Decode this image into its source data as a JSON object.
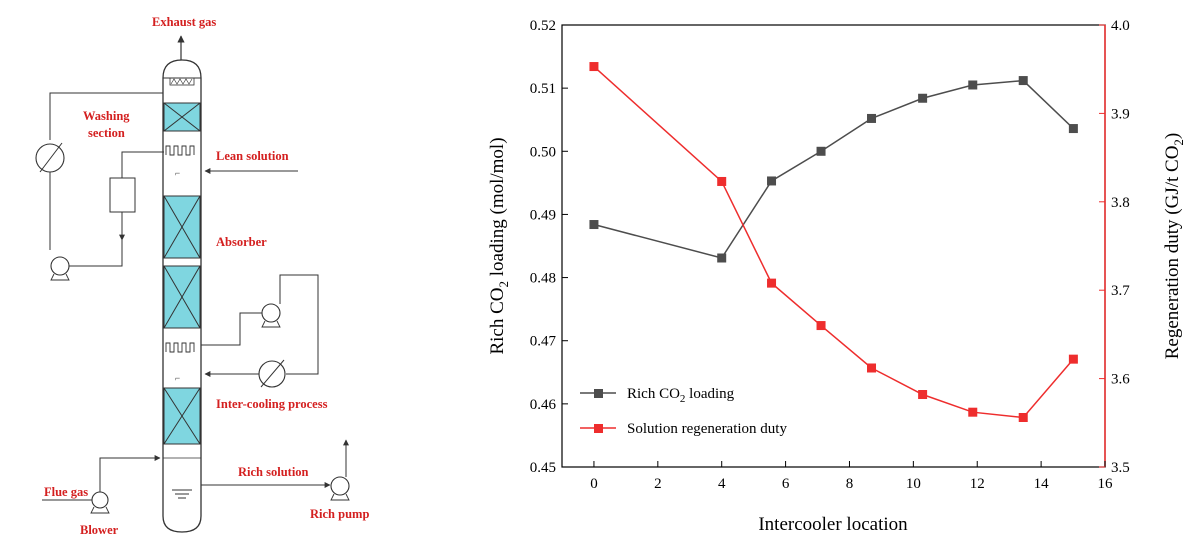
{
  "diagram": {
    "labels": {
      "exhaust_gas": "Exhaust gas",
      "washing_section_line1": "Washing",
      "washing_section_line2": "section",
      "lean_solution": "Lean solution",
      "absorber": "Absorber",
      "inter_cooling_process": "Inter-cooling process",
      "rich_solution": "Rich solution",
      "flue_gas": "Flue gas",
      "blower": "Blower",
      "rich_pump": "Rich pump"
    },
    "colors": {
      "label": "#d42020",
      "packing": "#7fd6e0",
      "line": "#333333"
    }
  },
  "chart_data": {
    "type": "line",
    "xlabel": "Intercooler location",
    "ylabel_left": "Rich CO2 loading (mol/mol)",
    "ylabel_right": "Regeneration duty (GJ/t CO2)",
    "xlim": [
      -1,
      16
    ],
    "xticks": [
      "0",
      "2",
      "4",
      "6",
      "8",
      "10",
      "12",
      "14",
      "16"
    ],
    "ylim_left": [
      0.45,
      0.52
    ],
    "yticks_left": [
      "0.45",
      "0.46",
      "0.47",
      "0.48",
      "0.49",
      "0.50",
      "0.51",
      "0.52"
    ],
    "ylim_right": [
      3.5,
      4.0
    ],
    "yticks_right": [
      "3.5",
      "3.6",
      "3.7",
      "3.8",
      "3.9",
      "4.0"
    ],
    "legend_position": "bottom-left",
    "series": [
      {
        "name": "Rich CO2 loading",
        "axis": "left",
        "color": "#4d4d4d",
        "x": [
          0,
          4,
          5.56,
          7.11,
          8.69,
          10.29,
          11.86,
          13.44,
          15.01
        ],
        "values": [
          0.4884,
          0.4831,
          0.4953,
          0.5,
          0.5052,
          0.5084,
          0.5105,
          0.5112,
          0.5036
        ]
      },
      {
        "name": "Solution regeneration duty",
        "axis": "right",
        "color": "#ee2d2d",
        "x": [
          0,
          4,
          5.56,
          7.11,
          8.69,
          10.29,
          11.86,
          13.44,
          15.01
        ],
        "values": [
          3.953,
          3.823,
          3.708,
          3.66,
          3.612,
          3.582,
          3.562,
          3.556,
          3.622
        ]
      }
    ]
  }
}
